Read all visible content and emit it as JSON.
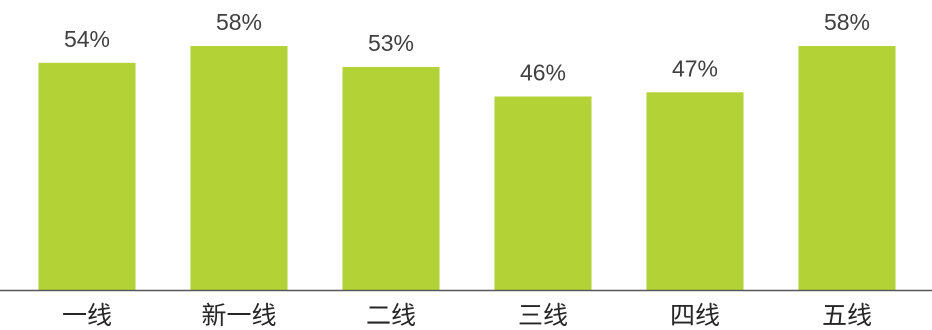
{
  "chart_data": {
    "type": "bar",
    "categories": [
      "一线",
      "新一线",
      "二线",
      "三线",
      "四线",
      "五线"
    ],
    "values": [
      54,
      58,
      53,
      46,
      47,
      58
    ],
    "value_labels": [
      "54%",
      "58%",
      "53%",
      "46%",
      "47%",
      "58%"
    ],
    "ylim": [
      0,
      66
    ],
    "grid": false,
    "colors": {
      "bar": "#b2d235",
      "axis": "#595959"
    }
  }
}
